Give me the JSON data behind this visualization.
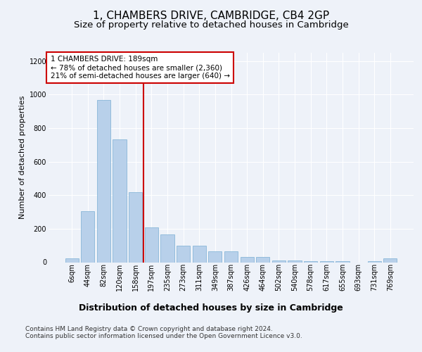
{
  "title": "1, CHAMBERS DRIVE, CAMBRIDGE, CB4 2GP",
  "subtitle": "Size of property relative to detached houses in Cambridge",
  "xlabel": "Distribution of detached houses by size in Cambridge",
  "ylabel": "Number of detached properties",
  "categories": [
    "6sqm",
    "44sqm",
    "82sqm",
    "120sqm",
    "158sqm",
    "197sqm",
    "235sqm",
    "273sqm",
    "311sqm",
    "349sqm",
    "387sqm",
    "426sqm",
    "464sqm",
    "502sqm",
    "540sqm",
    "578sqm",
    "617sqm",
    "655sqm",
    "693sqm",
    "731sqm",
    "769sqm"
  ],
  "values": [
    25,
    305,
    970,
    735,
    420,
    210,
    165,
    100,
    100,
    65,
    65,
    30,
    30,
    10,
    10,
    5,
    5,
    5,
    0,
    5,
    25
  ],
  "bar_color": "#b8d0ea",
  "bar_edge_color": "#7aafd4",
  "vline_xidx": 4.5,
  "vline_color": "#cc0000",
  "annotation_line1": "1 CHAMBERS DRIVE: 189sqm",
  "annotation_line2": "← 78% of detached houses are smaller (2,360)",
  "annotation_line3": "21% of semi-detached houses are larger (640) →",
  "annotation_box_facecolor": "#ffffff",
  "annotation_box_edgecolor": "#cc0000",
  "ylim": [
    0,
    1250
  ],
  "yticks": [
    0,
    200,
    400,
    600,
    800,
    1000,
    1200
  ],
  "footer_line1": "Contains HM Land Registry data © Crown copyright and database right 2024.",
  "footer_line2": "Contains public sector information licensed under the Open Government Licence v3.0.",
  "bg_color": "#eef2f9",
  "grid_color": "#ffffff",
  "title_fontsize": 11,
  "subtitle_fontsize": 9.5,
  "xlabel_fontsize": 9,
  "ylabel_fontsize": 8,
  "tick_fontsize": 7,
  "annotation_fontsize": 7.5,
  "footer_fontsize": 6.5
}
